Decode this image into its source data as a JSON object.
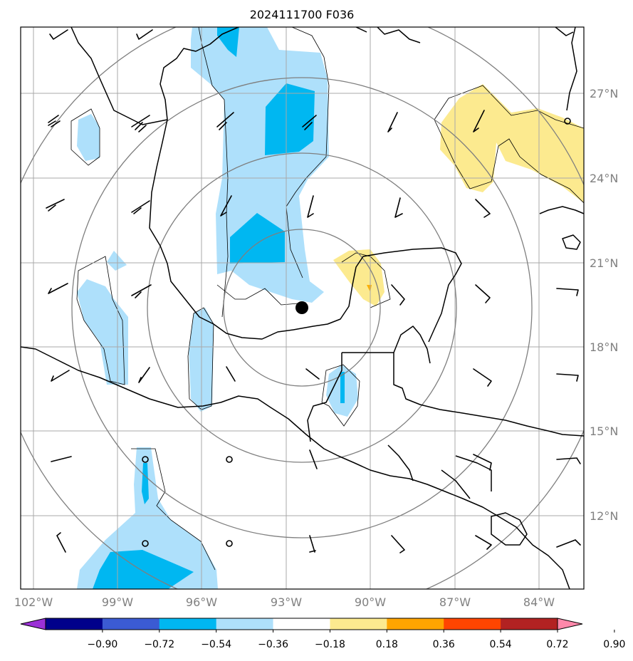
{
  "title": "2024111700 F036",
  "map": {
    "lon_ticks": [
      "102°W",
      "99°W",
      "96°W",
      "93°W",
      "90°W",
      "87°W",
      "84°W"
    ],
    "lat_ticks": [
      "27°N",
      "24°N",
      "21°N",
      "18°N",
      "15°N",
      "12°N"
    ],
    "colors": {
      "frame": "#000000",
      "grid": "#a8a8a8",
      "rings": "#7f7f7f",
      "coast": "#000000",
      "fill_neg_light": "#aee0fb",
      "fill_neg_mid": "#00b7f1",
      "fill_pos_light": "#fcea8f",
      "fill_pos_mid": "#ffb000",
      "storm_center": "#000000"
    },
    "storm_center_marker": "filled-circle"
  },
  "colorbar": {
    "tick_labels": [
      "−0.90",
      "−0.72",
      "−0.54",
      "−0.36",
      "−0.18",
      "0.18",
      "0.36",
      "0.54",
      "0.72",
      "0.90"
    ],
    "colors": [
      "#9b30d6",
      "#00008b",
      "#3b5bd3",
      "#00b7f1",
      "#aee0fb",
      "#ffffff",
      "#fcea8f",
      "#ffa500",
      "#ff4500",
      "#b22222",
      "#ff88aa"
    ],
    "min_arrow_color": "#9b30d6",
    "max_arrow_color": "#ff88aa"
  }
}
